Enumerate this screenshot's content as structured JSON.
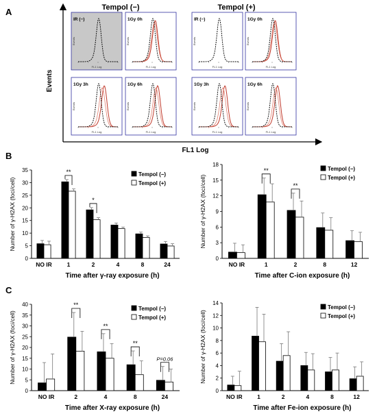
{
  "figure": {
    "panel_labels": [
      "A",
      "B",
      "C"
    ]
  },
  "flow": {
    "group_titles": [
      "Tempol (−)",
      "Tempol (+)"
    ],
    "y_axis_label": "Events",
    "x_axis_label": "FL1 Log",
    "sub_x_label": "FL1 Log",
    "sub_y_label": "Events",
    "panels": [
      {
        "label": "IR (−)",
        "group": 0,
        "highlighted": true,
        "control_only": true
      },
      {
        "label": "1Gy 0h",
        "group": 0,
        "highlighted": false,
        "control_only": false
      },
      {
        "label": "1Gy 3h",
        "group": 0,
        "highlighted": false,
        "control_only": false
      },
      {
        "label": "1Gy 6h",
        "group": 0,
        "highlighted": false,
        "control_only": false
      },
      {
        "label": "IR (−)",
        "group": 1,
        "highlighted": false,
        "control_only": true
      },
      {
        "label": "1Gy 0h",
        "group": 1,
        "highlighted": false,
        "control_only": false
      },
      {
        "label": "1Gy 3h",
        "group": 1,
        "highlighted": false,
        "control_only": false
      },
      {
        "label": "1Gy 6h",
        "group": 1,
        "highlighted": false,
        "control_only": false
      }
    ],
    "colors": {
      "box_border": "#3030a0",
      "highlight_fill": "#c8c8c8",
      "treated_line": "#c0392b",
      "control_line": "#000000"
    }
  },
  "chart_data": [
    {
      "type": "bar",
      "panel": "B",
      "xlabel": "Time after γ-ray exposure (h)",
      "ylabel": "Number of γ-H2AX (foci/cell)",
      "categories": [
        "NO IR",
        "1",
        "2",
        "4",
        "8",
        "24"
      ],
      "ylim": [
        0,
        35
      ],
      "yticks": [
        0,
        5,
        10,
        15,
        20,
        25,
        30,
        35
      ],
      "series": [
        {
          "name": "Tempol (−)",
          "color": "#000000",
          "values": [
            5.8,
            30.3,
            19.2,
            13.2,
            9.7,
            5.7
          ],
          "errors": [
            1.3,
            0.9,
            0.9,
            0.8,
            0.7,
            1.0
          ]
        },
        {
          "name": "Tempol (+)",
          "color": "#ffffff",
          "values": [
            5.4,
            26.6,
            15.3,
            11.8,
            8.3,
            4.9
          ],
          "errors": [
            1.4,
            0.9,
            0.8,
            0.6,
            0.6,
            0.9
          ]
        }
      ],
      "significance": [
        {
          "category": "1",
          "text": "**"
        },
        {
          "category": "2",
          "text": "*"
        }
      ],
      "legend_position": "top-right"
    },
    {
      "type": "bar",
      "panel": "B",
      "xlabel": "Time after C-ion exposure (h)",
      "ylabel": "Number of γ-H2AX (foci/cell)",
      "categories": [
        "NO IR",
        "1",
        "2",
        "8",
        "12"
      ],
      "ylim": [
        0,
        18
      ],
      "yticks": [
        0,
        3,
        6,
        9,
        12,
        15,
        18
      ],
      "series": [
        {
          "name": "Tempol (−)",
          "color": "#000000",
          "values": [
            1.2,
            12.2,
            9.2,
            5.9,
            3.4
          ],
          "errors": [
            1.7,
            3.2,
            3.3,
            2.8,
            1.9
          ]
        },
        {
          "name": "Tempol (+)",
          "color": "#ffffff",
          "values": [
            1.1,
            10.8,
            7.9,
            5.4,
            3.2
          ],
          "errors": [
            1.5,
            3.5,
            3.1,
            2.4,
            1.8
          ]
        }
      ],
      "significance": [
        {
          "category": "1",
          "text": "**"
        },
        {
          "category": "2",
          "text": "**"
        }
      ],
      "legend_position": "top-right"
    },
    {
      "type": "bar",
      "panel": "C",
      "xlabel": "Time after X-ray exposure (h)",
      "ylabel": "Number of γ-H2AX (foci/cell)",
      "categories": [
        "NO IR",
        "2",
        "4",
        "8",
        "24"
      ],
      "ylim": [
        0,
        40
      ],
      "yticks": [
        0,
        5,
        10,
        15,
        20,
        25,
        30,
        35,
        40
      ],
      "series": [
        {
          "name": "Tempol (−)",
          "color": "#000000",
          "values": [
            3.6,
            24.8,
            18.0,
            12.0,
            4.8
          ],
          "errors": [
            9.4,
            11.4,
            8.4,
            6.4,
            6.4
          ]
        },
        {
          "name": "Tempol (+)",
          "color": "#ffffff",
          "values": [
            5.4,
            18.3,
            15.0,
            7.4,
            4.0
          ],
          "errors": [
            11.6,
            9.2,
            6.8,
            6.4,
            6.0
          ]
        }
      ],
      "significance": [
        {
          "category": "2",
          "text": "**"
        },
        {
          "category": "4",
          "text": "**"
        },
        {
          "category": "8",
          "text": "**"
        },
        {
          "category": "24",
          "text": "P=0.06"
        }
      ],
      "legend_position": "top-right"
    },
    {
      "type": "bar",
      "panel": "C",
      "xlabel": "Time after Fe-ion exposure (h)",
      "ylabel": "Number of γ-H2AX (foci/cell)",
      "categories": [
        "NO IR",
        "1",
        "2",
        "4",
        "8",
        "12"
      ],
      "ylim": [
        0,
        14
      ],
      "yticks": [
        0,
        2,
        4,
        6,
        8,
        10,
        12,
        14
      ],
      "series": [
        {
          "name": "Tempol (−)",
          "color": "#000000",
          "values": [
            0.9,
            8.7,
            4.7,
            4.0,
            3.0,
            1.9
          ],
          "errors": [
            1.4,
            4.6,
            2.8,
            2.1,
            2.3,
            1.9
          ]
        },
        {
          "name": "Tempol (+)",
          "color": "#ffffff",
          "values": [
            0.8,
            7.8,
            5.6,
            3.3,
            3.3,
            2.3
          ],
          "errors": [
            2.3,
            4.4,
            3.8,
            2.6,
            2.7,
            2.3
          ]
        }
      ],
      "significance": [],
      "legend_position": "top-right"
    }
  ]
}
